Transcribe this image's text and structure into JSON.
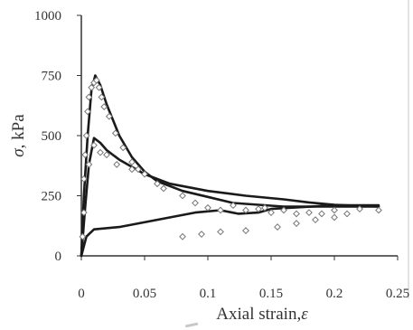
{
  "chart_data": {
    "type": "line",
    "xlabel_parts": [
      "Axial strain,",
      "ε"
    ],
    "ylabel_parts": [
      "σ",
      ", kPa"
    ],
    "xlim": [
      0,
      0.25
    ],
    "ylim": [
      0,
      1000
    ],
    "x_ticks": [
      0,
      0.05,
      0.1,
      0.15,
      0.2,
      0.25
    ],
    "x_tick_labels": [
      "0",
      "0.05",
      "0.1",
      "0.15",
      "0.2",
      "0.25"
    ],
    "y_ticks": [
      0,
      250,
      500,
      750,
      1000
    ],
    "y_tick_labels": [
      "0",
      "250",
      "500",
      "750",
      "1000"
    ],
    "grid": false,
    "series": [
      {
        "style": "line",
        "points": [
          [
            0,
            0
          ],
          [
            0.002,
            250
          ],
          [
            0.005,
            500
          ],
          [
            0.008,
            690
          ],
          [
            0.011,
            750
          ],
          [
            0.015,
            710
          ],
          [
            0.02,
            630
          ],
          [
            0.03,
            500
          ],
          [
            0.04,
            410
          ],
          [
            0.05,
            350
          ],
          [
            0.06,
            310
          ],
          [
            0.08,
            270
          ],
          [
            0.1,
            245
          ],
          [
            0.12,
            220
          ],
          [
            0.16,
            205
          ],
          [
            0.2,
            205
          ],
          [
            0.235,
            205
          ]
        ]
      },
      {
        "style": "line",
        "points": [
          [
            0,
            0
          ],
          [
            0.003,
            200
          ],
          [
            0.006,
            380
          ],
          [
            0.01,
            490
          ],
          [
            0.015,
            470
          ],
          [
            0.02,
            440
          ],
          [
            0.03,
            400
          ],
          [
            0.05,
            340
          ],
          [
            0.07,
            300
          ],
          [
            0.1,
            270
          ],
          [
            0.13,
            250
          ],
          [
            0.16,
            235
          ],
          [
            0.18,
            222
          ],
          [
            0.2,
            212
          ],
          [
            0.235,
            205
          ]
        ]
      },
      {
        "style": "line",
        "points": [
          [
            0,
            0
          ],
          [
            0.004,
            80
          ],
          [
            0.01,
            110
          ],
          [
            0.03,
            120
          ],
          [
            0.06,
            150
          ],
          [
            0.09,
            180
          ],
          [
            0.11,
            190
          ],
          [
            0.124,
            175
          ],
          [
            0.14,
            180
          ],
          [
            0.15,
            195
          ],
          [
            0.165,
            200
          ],
          [
            0.2,
            210
          ],
          [
            0.235,
            210
          ]
        ]
      },
      {
        "style": "markers",
        "points": [
          [
            0.001,
            80
          ],
          [
            0.002,
            180
          ],
          [
            0.002,
            320
          ],
          [
            0.003,
            420
          ],
          [
            0.004,
            500
          ],
          [
            0.005,
            600
          ],
          [
            0.006,
            660
          ],
          [
            0.008,
            700
          ],
          [
            0.01,
            720
          ],
          [
            0.012,
            730
          ],
          [
            0.014,
            700
          ],
          [
            0.016,
            660
          ],
          [
            0.018,
            620
          ],
          [
            0.022,
            580
          ],
          [
            0.027,
            510
          ],
          [
            0.033,
            450
          ],
          [
            0.04,
            390
          ],
          [
            0.045,
            360
          ],
          [
            0.05,
            340
          ],
          [
            0.006,
            380
          ],
          [
            0.01,
            460
          ],
          [
            0.015,
            430
          ],
          [
            0.02,
            420
          ],
          [
            0.028,
            380
          ],
          [
            0.04,
            360
          ],
          [
            0.06,
            300
          ],
          [
            0.065,
            280
          ],
          [
            0.08,
            250
          ],
          [
            0.09,
            220
          ],
          [
            0.1,
            200
          ],
          [
            0.11,
            190
          ],
          [
            0.12,
            210
          ],
          [
            0.13,
            190
          ],
          [
            0.14,
            195
          ],
          [
            0.145,
            200
          ],
          [
            0.15,
            180
          ],
          [
            0.16,
            190
          ],
          [
            0.17,
            175
          ],
          [
            0.18,
            180
          ],
          [
            0.19,
            175
          ],
          [
            0.2,
            190
          ],
          [
            0.21,
            175
          ],
          [
            0.22,
            195
          ],
          [
            0.235,
            190
          ],
          [
            0.08,
            80
          ],
          [
            0.095,
            90
          ],
          [
            0.11,
            100
          ],
          [
            0.13,
            105
          ],
          [
            0.155,
            120
          ],
          [
            0.17,
            135
          ],
          [
            0.185,
            150
          ],
          [
            0.2,
            160
          ]
        ]
      }
    ]
  }
}
